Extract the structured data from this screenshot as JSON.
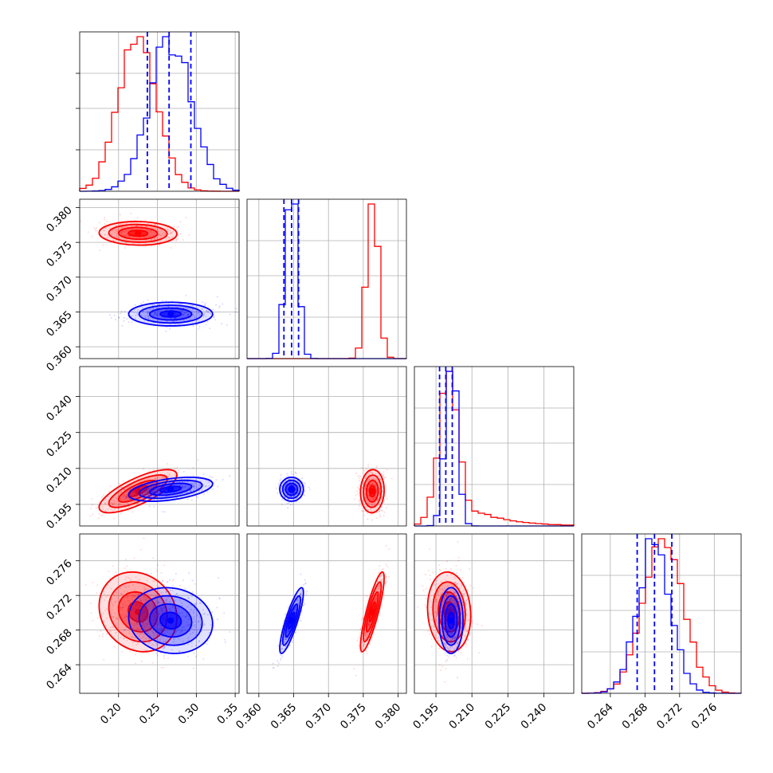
{
  "chart_data": {
    "type": "corner",
    "grid": true,
    "series": [
      {
        "color": "#ff0000"
      },
      {
        "color": "#0000ff"
      }
    ],
    "quantile_line_color": "#0000ff",
    "parameters": [
      {
        "range": [
          0.15,
          0.355
        ],
        "ticks": [
          0.2,
          0.25,
          0.3,
          0.35
        ],
        "tick_labels": [
          "0.20",
          "0.25",
          "0.30",
          "0.35"
        ],
        "red": {
          "mean": 0.225,
          "sd": 0.025
        },
        "blue": {
          "mean": 0.267,
          "sd": 0.027
        },
        "quantiles": [
          0.237,
          0.265,
          0.293
        ]
      },
      {
        "range": [
          0.3583,
          0.3812
        ],
        "ticks": [
          0.36,
          0.365,
          0.37,
          0.375,
          0.38
        ],
        "tick_labels": [
          "0.360",
          "0.365",
          "0.370",
          "0.375",
          "0.380"
        ],
        "red": {
          "mean": 0.3763,
          "sd": 0.00085
        },
        "blue": {
          "mean": 0.3647,
          "sd": 0.00085
        },
        "quantiles": [
          0.3636,
          0.3647,
          0.3657
        ]
      },
      {
        "range": [
          0.186,
          0.2525
        ],
        "ticks": [
          0.195,
          0.21,
          0.225,
          0.24
        ],
        "tick_labels": [
          "0.195",
          "0.210",
          "0.225",
          "0.240"
        ],
        "red": {
          "mean": 0.2005,
          "sd": 0.0045
        },
        "blue": {
          "mean": 0.2013,
          "sd": 0.0025
        },
        "quantiles": [
          0.1965,
          0.1991,
          0.2018
        ]
      },
      {
        "range": [
          0.2607,
          0.2791
        ],
        "ticks": [
          0.264,
          0.268,
          0.272,
          0.276
        ],
        "tick_labels": [
          "0.264",
          "0.268",
          "0.272",
          "0.276"
        ],
        "red": {
          "mean": 0.2701,
          "sd": 0.0023
        },
        "blue": {
          "mean": 0.2691,
          "sd": 0.0019
        },
        "quantiles": [
          0.2671,
          0.2691,
          0.2711
        ]
      }
    ],
    "correlations": {
      "red": {
        "1-0": -0.05,
        "2-0": 0.75,
        "2-1": 0.05,
        "3-0": -0.15,
        "3-1": 0.85,
        "3-2": -0.1
      },
      "blue": {
        "1-0": 0.0,
        "2-0": 0.45,
        "2-1": 0.0,
        "3-0": -0.1,
        "3-1": 0.85,
        "3-2": 0.0
      }
    }
  }
}
